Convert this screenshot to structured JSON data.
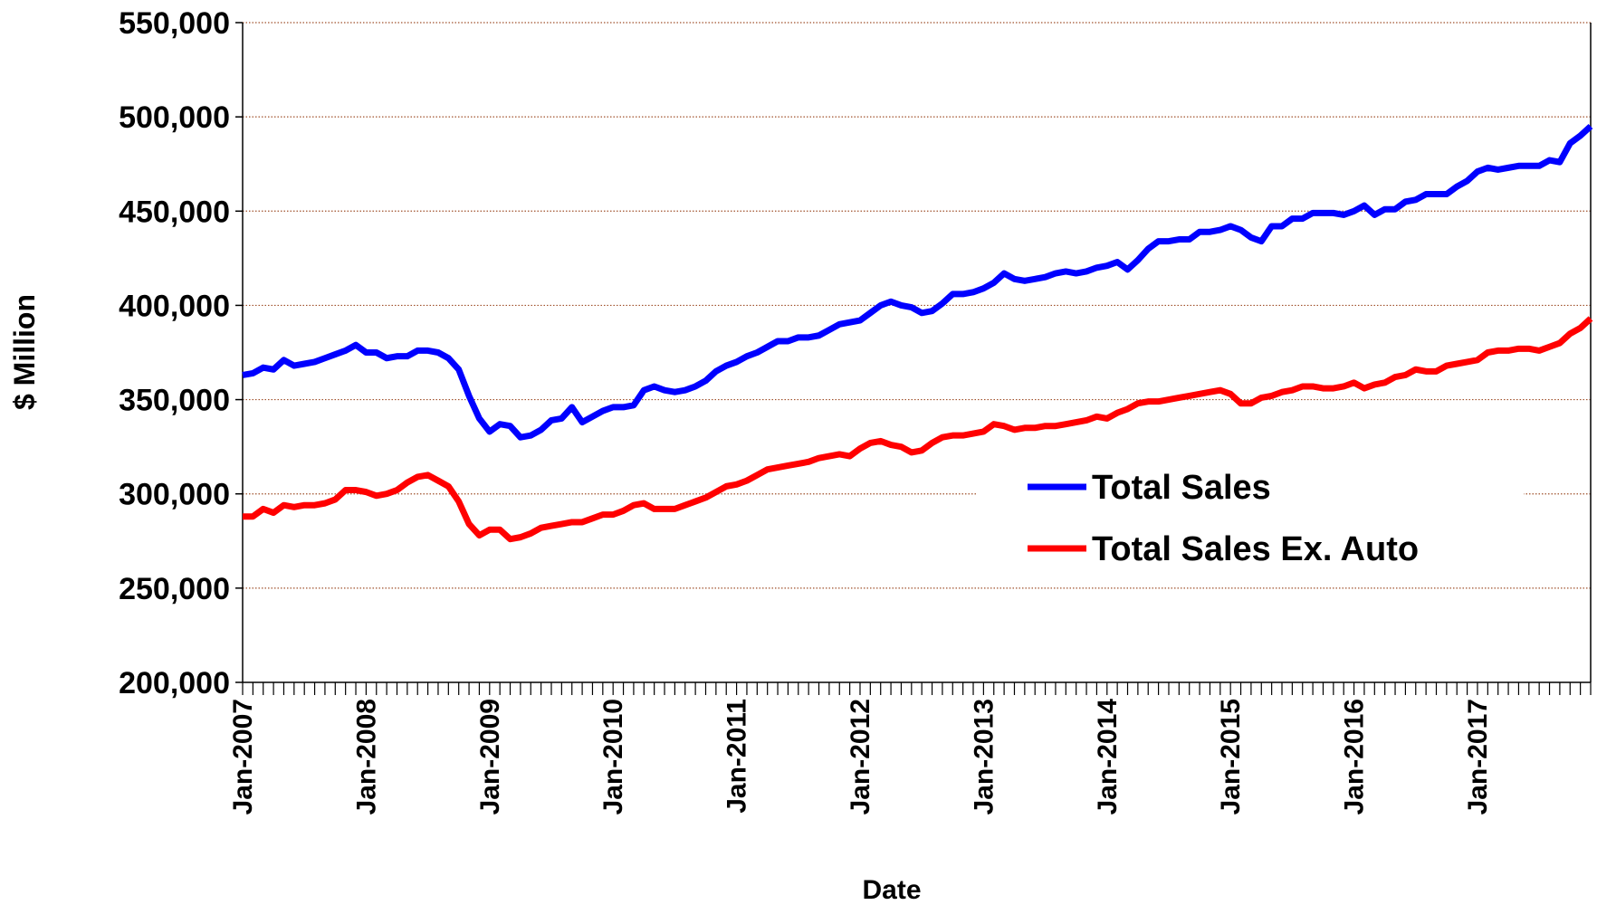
{
  "chart_data": {
    "type": "line",
    "x_label": "Date",
    "y_label": "$ Million",
    "categories": [
      "Jan-2007",
      null,
      null,
      null,
      null,
      null,
      null,
      null,
      null,
      null,
      null,
      null,
      "Jan-2008",
      null,
      null,
      null,
      null,
      null,
      null,
      null,
      null,
      null,
      null,
      null,
      "Jan-2009",
      null,
      null,
      null,
      null,
      null,
      null,
      null,
      null,
      null,
      null,
      null,
      "Jan-2010",
      null,
      null,
      null,
      null,
      null,
      null,
      null,
      null,
      null,
      null,
      null,
      "Jan-2011",
      null,
      null,
      null,
      null,
      null,
      null,
      null,
      null,
      null,
      null,
      null,
      "Jan-2012",
      null,
      null,
      null,
      null,
      null,
      null,
      null,
      null,
      null,
      null,
      null,
      "Jan-2013",
      null,
      null,
      null,
      null,
      null,
      null,
      null,
      null,
      null,
      null,
      null,
      "Jan-2014",
      null,
      null,
      null,
      null,
      null,
      null,
      null,
      null,
      null,
      null,
      null,
      "Jan-2015",
      null,
      null,
      null,
      null,
      null,
      null,
      null,
      null,
      null,
      null,
      null,
      "Jan-2016",
      null,
      null,
      null,
      null,
      null,
      null,
      null,
      null,
      null,
      null,
      null,
      "Jan-2017",
      null,
      null,
      null,
      null,
      null,
      null,
      null,
      null,
      null,
      null,
      null
    ],
    "series": [
      {
        "name": "Total Sales",
        "color": "#0000ff",
        "values": [
          363000,
          364000,
          367000,
          366000,
          371000,
          368000,
          369000,
          370000,
          372000,
          374000,
          376000,
          379000,
          375000,
          375000,
          372000,
          373000,
          373000,
          376000,
          376000,
          375000,
          372000,
          366000,
          352000,
          340000,
          333000,
          337000,
          336000,
          330000,
          331000,
          334000,
          339000,
          340000,
          346000,
          338000,
          341000,
          344000,
          346000,
          346000,
          347000,
          355000,
          357000,
          355000,
          354000,
          355000,
          357000,
          360000,
          365000,
          368000,
          370000,
          373000,
          375000,
          378000,
          381000,
          381000,
          383000,
          383000,
          384000,
          387000,
          390000,
          391000,
          392000,
          396000,
          400000,
          402000,
          400000,
          399000,
          396000,
          397000,
          401000,
          406000,
          406000,
          407000,
          409000,
          412000,
          417000,
          414000,
          413000,
          414000,
          415000,
          417000,
          418000,
          417000,
          418000,
          420000,
          421000,
          423000,
          419000,
          424000,
          430000,
          434000,
          434000,
          435000,
          435000,
          439000,
          439000,
          440000,
          442000,
          440000,
          436000,
          434000,
          442000,
          442000,
          446000,
          446000,
          449000,
          449000,
          449000,
          448000,
          450000,
          453000,
          448000,
          451000,
          451000,
          455000,
          456000,
          459000,
          459000,
          459000,
          463000,
          466000,
          471000,
          473000,
          472000,
          473000,
          474000,
          474000,
          474000,
          477000,
          476000,
          486000,
          490000,
          495000
        ]
      },
      {
        "name": "Total Sales Ex. Auto",
        "color": "#ff0000",
        "values": [
          288000,
          288000,
          292000,
          290000,
          294000,
          293000,
          294000,
          294000,
          295000,
          297000,
          302000,
          302000,
          301000,
          299000,
          300000,
          302000,
          306000,
          309000,
          310000,
          307000,
          304000,
          296000,
          284000,
          278000,
          281000,
          281000,
          276000,
          277000,
          279000,
          282000,
          283000,
          284000,
          285000,
          285000,
          287000,
          289000,
          289000,
          291000,
          294000,
          295000,
          292000,
          292000,
          292000,
          294000,
          296000,
          298000,
          301000,
          304000,
          305000,
          307000,
          310000,
          313000,
          314000,
          315000,
          316000,
          317000,
          319000,
          320000,
          321000,
          320000,
          324000,
          327000,
          328000,
          326000,
          325000,
          322000,
          323000,
          327000,
          330000,
          331000,
          331000,
          332000,
          333000,
          337000,
          336000,
          334000,
          335000,
          335000,
          336000,
          336000,
          337000,
          338000,
          339000,
          341000,
          340000,
          343000,
          345000,
          348000,
          349000,
          349000,
          350000,
          351000,
          352000,
          353000,
          354000,
          355000,
          353000,
          348000,
          348000,
          351000,
          352000,
          354000,
          355000,
          357000,
          357000,
          356000,
          356000,
          357000,
          359000,
          356000,
          358000,
          359000,
          362000,
          363000,
          366000,
          365000,
          365000,
          368000,
          369000,
          370000,
          371000,
          375000,
          376000,
          376000,
          377000,
          377000,
          376000,
          378000,
          380000,
          385000,
          388000,
          393000
        ]
      }
    ],
    "ylim": [
      200000,
      550000
    ],
    "yticks": [
      {
        "value": 200000,
        "label": "200,000"
      },
      {
        "value": 250000,
        "label": "250,000"
      },
      {
        "value": 300000,
        "label": "300,000"
      },
      {
        "value": 350000,
        "label": "350,000"
      },
      {
        "value": 400000,
        "label": "400,000"
      },
      {
        "value": 450000,
        "label": "450,000"
      },
      {
        "value": 500000,
        "label": "500,000"
      },
      {
        "value": 550000,
        "label": "550,000"
      }
    ],
    "grid": true,
    "legend": "right"
  }
}
